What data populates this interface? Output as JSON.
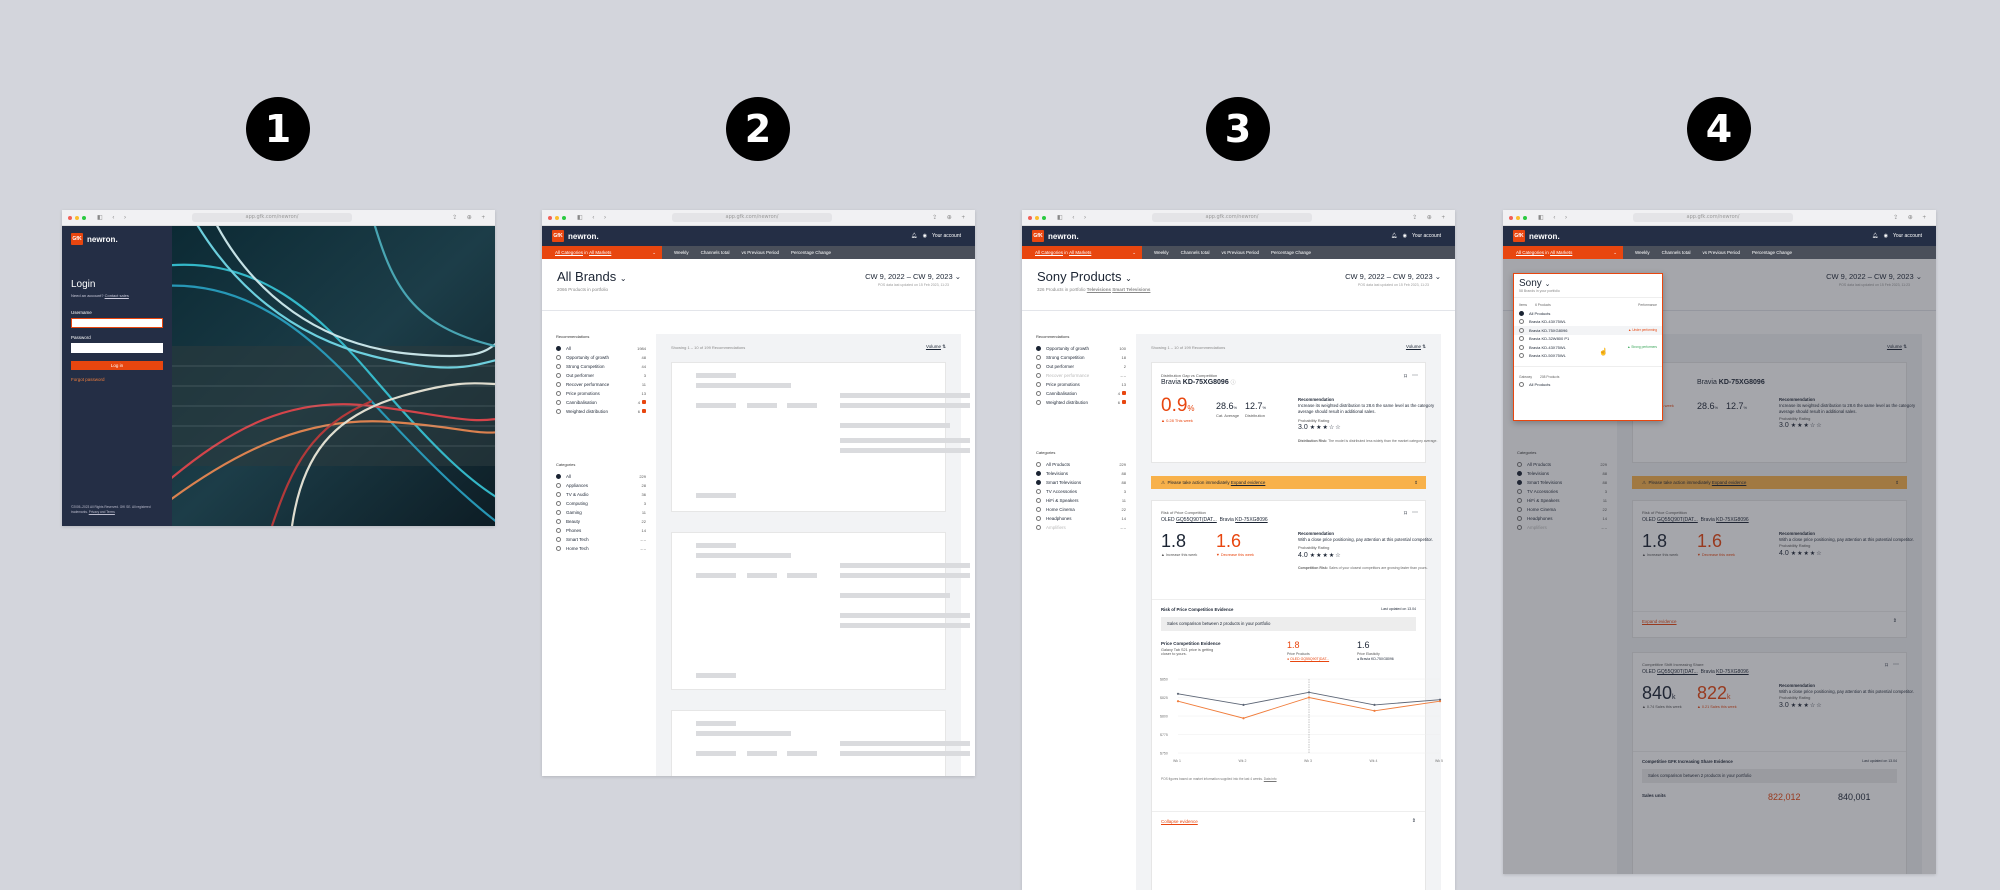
{
  "steps": [
    "1",
    "2",
    "3",
    "4"
  ],
  "browser": {
    "url": "app.gfk.com/newron/",
    "icons_left": "◧ ‹ ›",
    "icons_right": "⇪ ⊕ +"
  },
  "brand": {
    "logo": "GfK",
    "name": "newron."
  },
  "account": "Your account",
  "filters": {
    "categories": "All Categories",
    "in": "in",
    "markets": "All Markets",
    "weekly": "Weekly",
    "channels": "Channels total",
    "period": "vs Previous Period",
    "change": "Percentage Change"
  },
  "login": {
    "title": "Login",
    "need": "Need an account?",
    "contact": "Contact sales",
    "username": "Username",
    "password": "Password",
    "button": "Log in",
    "forgot": "Forgot password",
    "footer": "©2005–2023 All Rights Reserved. GfK SE. All registered trademarks.",
    "privacy": "Privacy and Terms"
  },
  "dates": {
    "range": "CW 9, 2022 – CW 9, 2023",
    "updated": "POS data last updated on 15 Feb 2023, 11:23"
  },
  "screen2": {
    "title": "All Brands",
    "sub": "2066 Products in portfolio"
  },
  "screen3": {
    "title": "Sony Products",
    "sub_prefix": "326 Products in portfolio",
    "sub_a": "Televisions",
    "sub_b": "Smart Televisions"
  },
  "rec_header": "Recommendations",
  "recs": [
    {
      "label": "All",
      "count": "1984"
    },
    {
      "label": "Opportunity of growth",
      "count": "48"
    },
    {
      "label": "Strong Competition",
      "count": "44"
    },
    {
      "label": "Out performer",
      "count": "3"
    },
    {
      "label": "Recover performance",
      "count": "11"
    },
    {
      "label": "Price promotions",
      "count": "13"
    },
    {
      "label": "Cannibalisation",
      "count": "4"
    },
    {
      "label": "Weighted distribution",
      "count": "6"
    }
  ],
  "cat_header": "Categories",
  "cats": [
    {
      "label": "All",
      "count": "229"
    },
    {
      "label": "Appliances",
      "count": "28"
    },
    {
      "label": "TV & Audio",
      "count": "36"
    },
    {
      "label": "Computing",
      "count": "3"
    },
    {
      "label": "Gaming",
      "count": "11"
    },
    {
      "label": "Beauty",
      "count": "22"
    },
    {
      "label": "Phones",
      "count": "14"
    },
    {
      "label": "Smart Tech",
      "count": "– –"
    },
    {
      "label": "Home Tech",
      "count": "– –"
    }
  ],
  "recs3": [
    {
      "label": "Opportunity of growth",
      "count": "100"
    },
    {
      "label": "Strong Competition",
      "count": "18"
    },
    {
      "label": "Out performer",
      "count": "2"
    },
    {
      "label": "Recover performance",
      "count": "– –"
    },
    {
      "label": "Price promotions",
      "count": "13"
    },
    {
      "label": "Cannibalisation",
      "count": "4"
    },
    {
      "label": "Weighted distribution",
      "count": "6"
    }
  ],
  "cats3": [
    {
      "label": "All Products",
      "count": "229"
    },
    {
      "label": "Televisions",
      "count": "88"
    },
    {
      "label": "Smart Televisions",
      "count": "88"
    },
    {
      "label": "TV Accessories",
      "count": "3"
    },
    {
      "label": "HiFi & Speakers",
      "count": "11"
    },
    {
      "label": "Home Cinema",
      "count": "22"
    },
    {
      "label": "Headphones",
      "count": "14"
    },
    {
      "label": "Amplifiers",
      "count": "– –"
    }
  ],
  "showing": "Showing 1 – 10 of 199 Recommendations",
  "sort": "Volume",
  "card1": {
    "kicker": "Distribution Gap vs Competition",
    "brand": "Bravia",
    "model": "KD-75XG8096",
    "value": "0.9",
    "unit": "%",
    "delta": "0.28 This week",
    "s1": "28.6",
    "s1u": "%",
    "s1l": "Cat. Average",
    "s2": "12.7",
    "s2u": "%",
    "s2l": "Distribution",
    "rec_title": "Recommendation",
    "rec_text": "Increase its weighted distribution to 28.6 the same level as the category average should result in additional sales.",
    "prob": "Probability Rating",
    "score": "3.0",
    "stars": "★★★☆☆",
    "risk": "Distribution Risk:",
    "risk_text": "The model is distributed less widely than the market category average."
  },
  "warning": {
    "text": "Please take action immediately",
    "link": "Expand evidence"
  },
  "card2": {
    "kicker": "Risk of Price Competition",
    "a": "OLED",
    "a_model": "GQ55Q90T(DAT...",
    "b": "Bravia",
    "b_model": "KD-75XG8096",
    "v1": "1.8",
    "v1l": "Increase this week",
    "v2": "1.6",
    "v2l": "Decrease this week",
    "rec_title": "Recommendation",
    "rec_text": "With a close price positioning, pay attention at this potential competitor.",
    "prob": "Probability Rating",
    "score": "4.0",
    "stars": "★★★★☆",
    "risk": "Competition Risk:",
    "risk_text": "Sales of your closest competitors are growing faster than yours."
  },
  "evidence": {
    "title": "Risk of Price Competition Evidence",
    "updated": "Last updated on 13.04",
    "banner": "Sales comparison between 2 products in your portfolio",
    "chart_title": "Price Competition Evidence",
    "chart_sub": "Galaxy Tab S21 price is getting closer to yours.",
    "p1": "1.8",
    "p1l": "Price Products",
    "p1m": "OLED GQ55Q90T(DAT...",
    "p2": "1.6",
    "p2l": "Price Elasticity",
    "p2m": "Bravia KD-75XG8096",
    "note": "POS figures based on market information supplied into the last 4 weeks.",
    "note_link": "Data info",
    "collapse": "Collapse evidence"
  },
  "chart_data": {
    "type": "line",
    "categories": [
      "Wk 1",
      "Wk 2",
      "Wk 3",
      "Wk 4",
      "Wk 5"
    ],
    "yticks": [
      "$850",
      "$825",
      "$800",
      "$775",
      "$750"
    ],
    "ylim": [
      750,
      850
    ],
    "series": [
      {
        "values": [
          830,
          815,
          832,
          815,
          822
        ]
      },
      {
        "values": [
          820,
          797,
          825,
          807,
          820
        ]
      }
    ],
    "colors": [
      "#5d6676",
      "#f07d3c"
    ]
  },
  "dropdown": {
    "title": "Sony",
    "sub": "58 Brands in your portfolio",
    "h_items": "Items",
    "h_products": "6 Products",
    "h_perf": "Performance",
    "items": [
      {
        "label": "All Products",
        "tag": "",
        "sel": true
      },
      {
        "label": "Bravia KD-43X75WL",
        "tag": "",
        "sel": false
      },
      {
        "label": "Bravia KD-75XG8096",
        "tag": "▲ Under performing",
        "sel": false
      },
      {
        "label": "Bravia KD-32W800 P1",
        "tag": "",
        "sel": false
      },
      {
        "label": "Bravia KD-43X75WL",
        "tag": "▲ Strong performers",
        "sel": false
      },
      {
        "label": "Bravia KD-50X75WL",
        "tag": "",
        "sel": false
      }
    ],
    "h_gateway": "Gateway",
    "h_gw_products": "208 Products",
    "gw_item": "All Products"
  },
  "card3": {
    "kicker": "Competitive Shift Increasing Share",
    "a_model": "GQ55Q90T(DAT...",
    "b_model": "KD-75XG8096",
    "v1": "840",
    "v1u": "k",
    "v1l": "0.74 Sales this week",
    "v2": "822",
    "v2u": "k",
    "v2l": "0.21 Sales this week",
    "score": "3.0",
    "stars": "★★★☆☆",
    "evidence": "Competitive GFK Increasing Share Evidence",
    "sales": "Sales units",
    "n1": "822,012",
    "n2": "840,001"
  }
}
